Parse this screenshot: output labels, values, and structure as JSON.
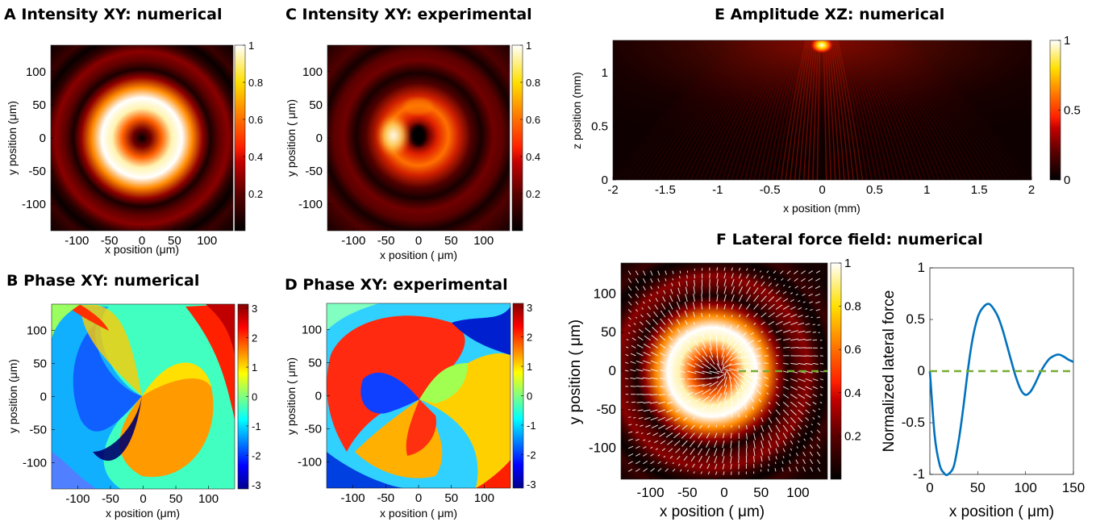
{
  "chart_data": [
    {
      "id": "A",
      "type": "heatmap",
      "title": "A Intensity XY: numerical",
      "xlabel": "x position (μm)",
      "ylabel": "y position (μm)",
      "xlim": [
        -140,
        140
      ],
      "ylim": [
        -140,
        140
      ],
      "xticks": [
        -100,
        -50,
        0,
        50,
        100
      ],
      "yticks": [
        -100,
        -50,
        0,
        50,
        100
      ],
      "colormap": "hot",
      "clim": [
        0,
        1
      ],
      "cticks": [
        0.2,
        0.4,
        0.6,
        0.8,
        1
      ],
      "cticklabels": [
        "0.2",
        "0.4",
        "0.6",
        "0.8",
        "1"
      ],
      "pattern": "donut with outer rings"
    },
    {
      "id": "C",
      "type": "heatmap",
      "title": "C Intensity XY: experimental",
      "xlabel": "x position ( μm)",
      "ylabel": "y position ( μm)",
      "xlim": [
        -140,
        140
      ],
      "ylim": [
        -140,
        140
      ],
      "xticks": [
        -100,
        -50,
        0,
        50,
        100
      ],
      "yticks": [
        -100,
        -50,
        0,
        50,
        100
      ],
      "colormap": "hot",
      "clim": [
        0,
        1
      ],
      "cticks": [
        0.2,
        0.4,
        0.6,
        0.8,
        1
      ],
      "cticklabels": [
        "0.2",
        "0.4",
        "0.6",
        "0.8",
        "1"
      ],
      "pattern": "donut with outer rings, asymmetric"
    },
    {
      "id": "B",
      "type": "heatmap",
      "title": "B Phase XY: numerical",
      "xlabel": "x position (μm)",
      "ylabel": "y position (μm)",
      "xlim": [
        -140,
        140
      ],
      "ylim": [
        -140,
        140
      ],
      "xticks": [
        -100,
        -50,
        0,
        50,
        100
      ],
      "yticks": [
        -100,
        -50,
        0,
        50,
        100
      ],
      "colormap": "jet",
      "clim": [
        -3.14,
        3.14
      ],
      "cticks": [
        -3,
        -2,
        -1,
        0,
        1,
        2,
        3
      ],
      "cticklabels": [
        "-3",
        "-2",
        "-1",
        "0",
        "1",
        "2",
        "3"
      ],
      "pattern": "spiral phase"
    },
    {
      "id": "D",
      "type": "heatmap",
      "title": "D Phase XY: experimental",
      "xlabel": "x position ( μm)",
      "ylabel": "y position ( μm)",
      "xlim": [
        -140,
        140
      ],
      "ylim": [
        -140,
        140
      ],
      "xticks": [
        -100,
        -50,
        0,
        50,
        100
      ],
      "yticks": [
        -100,
        -50,
        0,
        50,
        100
      ],
      "colormap": "jet",
      "clim": [
        -3.14,
        3.14
      ],
      "cticks": [
        -3,
        -2,
        -1,
        0,
        1,
        2,
        3
      ],
      "cticklabels": [
        "-3",
        "-2",
        "-1",
        "0",
        "1",
        "2",
        "3"
      ],
      "pattern": "spiral phase, noisy"
    },
    {
      "id": "E",
      "type": "heatmap",
      "title": "E  Amplitude XZ: numerical",
      "xlabel": "x position (mm)",
      "ylabel": "z position (mm)",
      "xlim": [
        -2,
        2
      ],
      "ylim": [
        0,
        1.3
      ],
      "xticks": [
        -2,
        -1.5,
        -1,
        -0.5,
        0,
        0.5,
        1,
        1.5,
        2
      ],
      "xticklabels": [
        "-2",
        "-1.5",
        "-1",
        "-0.5",
        "0",
        "0.5",
        "1",
        "1.5",
        "2"
      ],
      "yticks": [
        0,
        0.5,
        1
      ],
      "yticklabels": [
        "0",
        "0.5",
        "1"
      ],
      "colormap": "hot",
      "clim": [
        0,
        1
      ],
      "cticks": [
        0,
        0.5,
        1
      ],
      "cticklabels": [
        "0",
        "0.5",
        "1"
      ],
      "pattern": "propagation fringes focusing at top center"
    },
    {
      "id": "F1",
      "type": "heatmap",
      "title": "F Lateral force field: numerical",
      "xlabel": "x position ( μm)",
      "ylabel": "y position ( μm)",
      "xlim": [
        -140,
        140
      ],
      "ylim": [
        -140,
        140
      ],
      "xticks": [
        -100,
        -50,
        0,
        50,
        100
      ],
      "yticks": [
        -100,
        -50,
        0,
        50,
        100
      ],
      "colormap": "hot",
      "clim": [
        0,
        1
      ],
      "cticks": [
        0.2,
        0.4,
        0.6,
        0.8,
        1
      ],
      "cticklabels": [
        "0.2",
        "0.4",
        "0.6",
        "0.8",
        "1"
      ],
      "overlay": "white force vectors; green dashed line along y=0 for x from 0 to 140",
      "pattern": "donut with outer rings"
    },
    {
      "id": "F2",
      "type": "line",
      "title": "",
      "xlabel": "x position ( μm)",
      "ylabel": "Normalized lateral force",
      "xlim": [
        0,
        150
      ],
      "ylim": [
        -1,
        1
      ],
      "xticks": [
        0,
        50,
        100,
        150
      ],
      "yticks": [
        -1,
        -0.5,
        0,
        0.5,
        1
      ],
      "yticklabels": [
        "-1",
        "-0.5",
        "0",
        "0.5",
        "1"
      ],
      "series": [
        {
          "x": [
            0,
            5,
            10,
            15,
            19,
            25,
            30,
            35,
            40,
            45,
            50,
            55,
            62,
            70,
            75,
            80,
            85,
            90,
            95,
            100,
            105,
            110,
            115,
            120,
            125,
            130,
            135,
            140,
            145,
            150
          ],
          "y": [
            0,
            -0.62,
            -0.9,
            -0.99,
            -1.0,
            -0.92,
            -0.68,
            -0.35,
            0.03,
            0.33,
            0.52,
            0.61,
            0.65,
            0.55,
            0.43,
            0.27,
            0.1,
            -0.06,
            -0.18,
            -0.23,
            -0.2,
            -0.12,
            -0.02,
            0.06,
            0.12,
            0.15,
            0.16,
            0.14,
            0.11,
            0.09
          ],
          "color": "#0072BD"
        },
        {
          "x": [
            0,
            150
          ],
          "y": [
            0,
            0
          ],
          "color": "#77AC30",
          "style": "dashed"
        }
      ]
    }
  ]
}
